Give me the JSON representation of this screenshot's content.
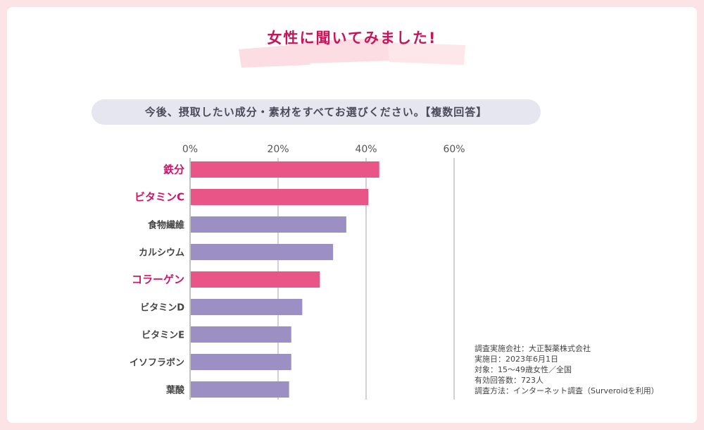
{
  "heading": "女性に聞いてみました!",
  "question": "今後、摂取したい成分・素材をすべてお選びください。【複数回答】",
  "colors": {
    "highlight_bar": "#e95587",
    "normal_bar": "#9c8fc3",
    "highlight_label": "#d0146a",
    "normal_label": "#444444",
    "heading": "#c8145a"
  },
  "chart_data": {
    "type": "bar",
    "orientation": "horizontal",
    "title": "",
    "xlabel": "",
    "ylabel": "",
    "xlim": [
      0,
      60
    ],
    "xticks": [
      "0%",
      "20%",
      "40%",
      "60%"
    ],
    "grid": true,
    "categories": [
      "鉄分",
      "ビタミンC",
      "食物繊維",
      "カルシウム",
      "コラーゲン",
      "ビタミンD",
      "ビタミンE",
      "イソフラボン",
      "葉酸"
    ],
    "values": [
      43,
      40.5,
      35.5,
      32.5,
      29.5,
      25.5,
      23,
      23,
      22.5
    ],
    "highlighted": [
      true,
      true,
      false,
      false,
      true,
      false,
      false,
      false,
      false
    ]
  },
  "survey_notes": [
    "調査実施会社：大正製薬株式会社",
    "実施日：2023年6月1日",
    "対象：15〜49歳女性／全国",
    "有効回答数：723人",
    "調査方法：インターネット調査（Surveroidを利用）"
  ]
}
